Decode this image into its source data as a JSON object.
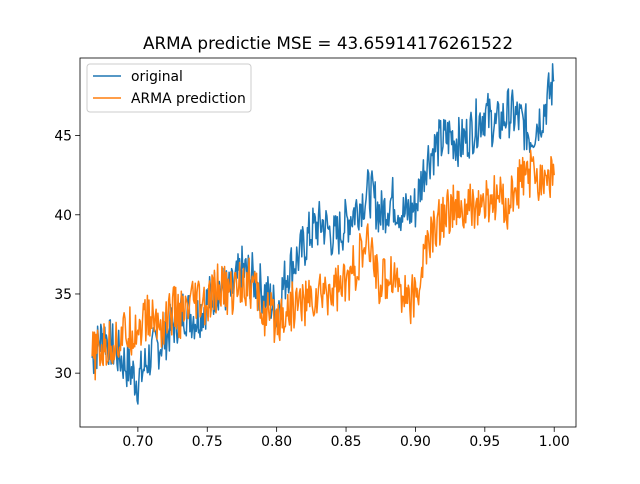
{
  "chart_data": {
    "type": "line",
    "title": "ARMA predictie MSE = 43.65914176261522",
    "xlabel": "",
    "ylabel": "",
    "xlim": [
      0.6583,
      1.0157
    ],
    "ylim": [
      26.6,
      49.9
    ],
    "xticks": [
      0.7,
      0.75,
      0.8,
      0.85,
      0.9,
      0.95,
      1.0
    ],
    "xtick_labels": [
      "0.70",
      "0.75",
      "0.80",
      "0.85",
      "0.90",
      "0.95",
      "1.00"
    ],
    "yticks": [
      30,
      35,
      40,
      45
    ],
    "ytick_labels": [
      "30",
      "35",
      "40",
      "45"
    ],
    "grid": false,
    "legend_position": "upper left",
    "series": [
      {
        "name": "original",
        "color": "#1f77b4",
        "x": [
          0.667,
          0.675,
          0.683,
          0.692,
          0.7,
          0.708,
          0.717,
          0.725,
          0.733,
          0.742,
          0.75,
          0.758,
          0.767,
          0.775,
          0.783,
          0.792,
          0.8,
          0.808,
          0.817,
          0.825,
          0.833,
          0.842,
          0.85,
          0.858,
          0.867,
          0.875,
          0.883,
          0.892,
          0.9,
          0.908,
          0.917,
          0.925,
          0.933,
          0.942,
          0.95,
          0.958,
          0.967,
          0.975,
          0.983,
          0.992,
          1.0
        ],
        "y": [
          31.0,
          32.5,
          31.5,
          30.5,
          29.5,
          31.0,
          32.0,
          33.0,
          34.0,
          33.5,
          34.5,
          35.5,
          35.0,
          36.5,
          36.0,
          35.0,
          34.0,
          36.5,
          37.5,
          39.0,
          39.5,
          38.5,
          39.5,
          40.5,
          41.5,
          40.0,
          41.0,
          40.0,
          40.5,
          43.5,
          44.5,
          45.0,
          44.5,
          45.5,
          46.5,
          45.5,
          46.5,
          46.0,
          45.0,
          46.5,
          48.5
        ]
      },
      {
        "name": "ARMA prediction",
        "color": "#ff7f0e",
        "x": [
          0.667,
          0.675,
          0.683,
          0.692,
          0.7,
          0.708,
          0.717,
          0.725,
          0.733,
          0.742,
          0.75,
          0.758,
          0.767,
          0.775,
          0.783,
          0.792,
          0.8,
          0.808,
          0.817,
          0.825,
          0.833,
          0.842,
          0.85,
          0.858,
          0.867,
          0.875,
          0.883,
          0.892,
          0.9,
          0.908,
          0.917,
          0.925,
          0.933,
          0.942,
          0.95,
          0.958,
          0.967,
          0.975,
          0.983,
          0.992,
          1.0
        ],
        "y": [
          31.0,
          31.5,
          32.0,
          32.5,
          33.0,
          33.5,
          33.0,
          34.0,
          33.5,
          34.5,
          34.0,
          35.5,
          35.0,
          36.0,
          35.5,
          33.5,
          33.5,
          34.0,
          34.5,
          34.5,
          35.0,
          35.5,
          35.5,
          37.0,
          38.0,
          35.5,
          36.5,
          35.0,
          34.5,
          38.0,
          39.5,
          40.5,
          40.0,
          40.5,
          40.5,
          41.0,
          40.5,
          42.0,
          42.5,
          42.5,
          42.5
        ]
      }
    ]
  }
}
